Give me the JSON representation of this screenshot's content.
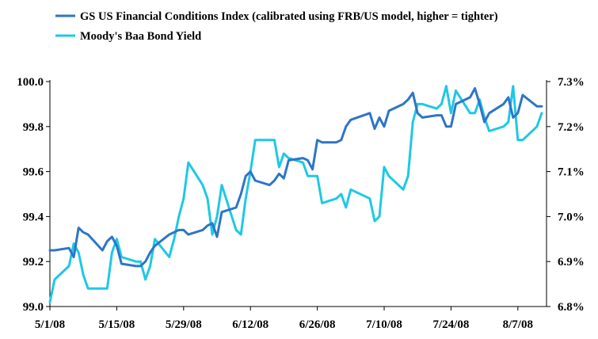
{
  "chart_data": {
    "type": "line",
    "title": "",
    "xlabel": "",
    "ylabel": "",
    "x_tick_labels": [
      "5/1/08",
      "5/15/08",
      "5/29/08",
      "6/12/08",
      "6/26/08",
      "7/10/08",
      "7/24/08",
      "8/7/08"
    ],
    "xlim": [
      "2008-05-01",
      "2008-08-13"
    ],
    "y_left": {
      "ylim": [
        99.0,
        100.0
      ],
      "tick_labels": [
        "99.0",
        "99.2",
        "99.4",
        "99.6",
        "99.8",
        "100.0"
      ]
    },
    "y_right": {
      "ylim": [
        6.8,
        7.3
      ],
      "tick_labels": [
        "6.8%",
        "6.9%",
        "7.0%",
        "7.1%",
        "7.2%",
        "7.3%"
      ]
    },
    "grid": false,
    "legend_position": "top-left",
    "series": [
      {
        "name": "GS US Financial Conditions Index (calibrated using FRB/US model, higher = tighter)",
        "axis": "left",
        "color": "#2E75C6",
        "points": [
          [
            "2008-05-01",
            99.25
          ],
          [
            "2008-05-02",
            99.25
          ],
          [
            "2008-05-05",
            99.26
          ],
          [
            "2008-05-06",
            99.22
          ],
          [
            "2008-05-07",
            99.35
          ],
          [
            "2008-05-08",
            99.33
          ],
          [
            "2008-05-09",
            99.32
          ],
          [
            "2008-05-12",
            99.25
          ],
          [
            "2008-05-13",
            99.29
          ],
          [
            "2008-05-14",
            99.31
          ],
          [
            "2008-05-15",
            99.27
          ],
          [
            "2008-05-16",
            99.19
          ],
          [
            "2008-05-19",
            99.18
          ],
          [
            "2008-05-20",
            99.18
          ],
          [
            "2008-05-21",
            99.2
          ],
          [
            "2008-05-22",
            99.24
          ],
          [
            "2008-05-23",
            99.27
          ],
          [
            "2008-05-26",
            99.32
          ],
          [
            "2008-05-27",
            99.33
          ],
          [
            "2008-05-28",
            99.34
          ],
          [
            "2008-05-29",
            99.34
          ],
          [
            "2008-05-30",
            99.32
          ],
          [
            "2008-06-02",
            99.34
          ],
          [
            "2008-06-03",
            99.36
          ],
          [
            "2008-06-04",
            99.37
          ],
          [
            "2008-06-05",
            99.31
          ],
          [
            "2008-06-06",
            99.42
          ],
          [
            "2008-06-09",
            99.44
          ],
          [
            "2008-06-10",
            99.5
          ],
          [
            "2008-06-11",
            99.58
          ],
          [
            "2008-06-12",
            99.6
          ],
          [
            "2008-06-13",
            99.56
          ],
          [
            "2008-06-16",
            99.54
          ],
          [
            "2008-06-17",
            99.56
          ],
          [
            "2008-06-18",
            99.59
          ],
          [
            "2008-06-19",
            99.57
          ],
          [
            "2008-06-20",
            99.65
          ],
          [
            "2008-06-23",
            99.66
          ],
          [
            "2008-06-24",
            99.65
          ],
          [
            "2008-06-25",
            99.61
          ],
          [
            "2008-06-26",
            99.74
          ],
          [
            "2008-06-27",
            99.73
          ],
          [
            "2008-06-30",
            99.73
          ],
          [
            "2008-07-01",
            99.74
          ],
          [
            "2008-07-02",
            99.8
          ],
          [
            "2008-07-03",
            99.83
          ],
          [
            "2008-07-07",
            99.86
          ],
          [
            "2008-07-08",
            99.79
          ],
          [
            "2008-07-09",
            99.84
          ],
          [
            "2008-07-10",
            99.8
          ],
          [
            "2008-07-11",
            99.87
          ],
          [
            "2008-07-14",
            99.9
          ],
          [
            "2008-07-15",
            99.92
          ],
          [
            "2008-07-16",
            99.95
          ],
          [
            "2008-07-17",
            99.86
          ],
          [
            "2008-07-18",
            99.84
          ],
          [
            "2008-07-21",
            99.85
          ],
          [
            "2008-07-22",
            99.85
          ],
          [
            "2008-07-23",
            99.8
          ],
          [
            "2008-07-24",
            99.8
          ],
          [
            "2008-07-25",
            99.9
          ],
          [
            "2008-07-28",
            99.93
          ],
          [
            "2008-07-29",
            99.97
          ],
          [
            "2008-07-30",
            99.9
          ],
          [
            "2008-07-31",
            99.82
          ],
          [
            "2008-08-01",
            99.86
          ],
          [
            "2008-08-04",
            99.9
          ],
          [
            "2008-08-05",
            99.93
          ],
          [
            "2008-08-06",
            99.84
          ],
          [
            "2008-08-07",
            99.86
          ],
          [
            "2008-08-08",
            99.94
          ],
          [
            "2008-08-11",
            99.89
          ],
          [
            "2008-08-12",
            99.89
          ]
        ]
      },
      {
        "name": "Moody's Baa Bond Yield",
        "axis": "right",
        "color": "#1EC8E6",
        "points": [
          [
            "2008-05-01",
            6.81
          ],
          [
            "2008-05-02",
            6.86
          ],
          [
            "2008-05-05",
            6.89
          ],
          [
            "2008-05-06",
            6.94
          ],
          [
            "2008-05-07",
            6.92
          ],
          [
            "2008-05-08",
            6.87
          ],
          [
            "2008-05-09",
            6.84
          ],
          [
            "2008-05-12",
            6.84
          ],
          [
            "2008-05-13",
            6.84
          ],
          [
            "2008-05-14",
            6.92
          ],
          [
            "2008-05-15",
            6.95
          ],
          [
            "2008-05-16",
            6.91
          ],
          [
            "2008-05-19",
            6.9
          ],
          [
            "2008-05-20",
            6.9
          ],
          [
            "2008-05-21",
            6.86
          ],
          [
            "2008-05-22",
            6.89
          ],
          [
            "2008-05-23",
            6.95
          ],
          [
            "2008-05-26",
            6.91
          ],
          [
            "2008-05-27",
            6.95
          ],
          [
            "2008-05-28",
            7.0
          ],
          [
            "2008-05-29",
            7.04
          ],
          [
            "2008-05-30",
            7.12
          ],
          [
            "2008-06-02",
            7.07
          ],
          [
            "2008-06-03",
            7.04
          ],
          [
            "2008-06-04",
            6.96
          ],
          [
            "2008-06-05",
            7.0
          ],
          [
            "2008-06-06",
            7.07
          ],
          [
            "2008-06-09",
            6.97
          ],
          [
            "2008-06-10",
            6.96
          ],
          [
            "2008-06-11",
            7.04
          ],
          [
            "2008-06-12",
            7.1
          ],
          [
            "2008-06-13",
            7.17
          ],
          [
            "2008-06-16",
            7.17
          ],
          [
            "2008-06-17",
            7.17
          ],
          [
            "2008-06-18",
            7.11
          ],
          [
            "2008-06-19",
            7.14
          ],
          [
            "2008-06-20",
            7.13
          ],
          [
            "2008-06-23",
            7.12
          ],
          [
            "2008-06-24",
            7.09
          ],
          [
            "2008-06-25",
            7.09
          ],
          [
            "2008-06-26",
            7.09
          ],
          [
            "2008-06-27",
            7.03
          ],
          [
            "2008-06-30",
            7.04
          ],
          [
            "2008-07-01",
            7.05
          ],
          [
            "2008-07-02",
            7.02
          ],
          [
            "2008-07-03",
            7.06
          ],
          [
            "2008-07-07",
            7.04
          ],
          [
            "2008-07-08",
            6.99
          ],
          [
            "2008-07-09",
            7.0
          ],
          [
            "2008-07-10",
            7.11
          ],
          [
            "2008-07-11",
            7.09
          ],
          [
            "2008-07-14",
            7.06
          ],
          [
            "2008-07-15",
            7.09
          ],
          [
            "2008-07-16",
            7.21
          ],
          [
            "2008-07-17",
            7.25
          ],
          [
            "2008-07-18",
            7.25
          ],
          [
            "2008-07-21",
            7.24
          ],
          [
            "2008-07-22",
            7.25
          ],
          [
            "2008-07-23",
            7.29
          ],
          [
            "2008-07-24",
            7.23
          ],
          [
            "2008-07-25",
            7.28
          ],
          [
            "2008-07-28",
            7.23
          ],
          [
            "2008-07-29",
            7.23
          ],
          [
            "2008-07-30",
            7.26
          ],
          [
            "2008-07-31",
            7.22
          ],
          [
            "2008-08-01",
            7.19
          ],
          [
            "2008-08-04",
            7.2
          ],
          [
            "2008-08-05",
            7.21
          ],
          [
            "2008-08-06",
            7.29
          ],
          [
            "2008-08-07",
            7.17
          ],
          [
            "2008-08-08",
            7.17
          ],
          [
            "2008-08-11",
            7.2
          ],
          [
            "2008-08-12",
            7.23
          ]
        ]
      }
    ]
  }
}
